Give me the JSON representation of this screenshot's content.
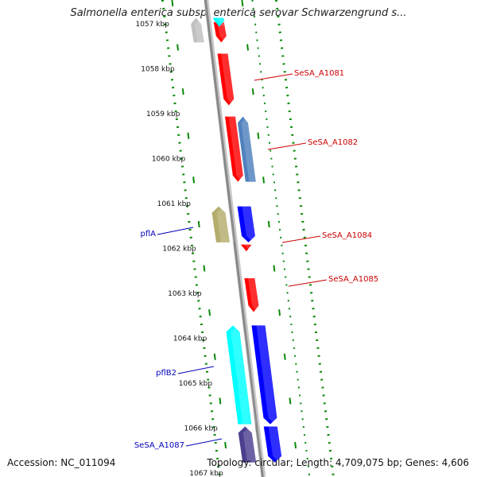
{
  "title": "Salmonella enterica subsp. enterica serovar Schwarzengrund s...",
  "accession": "Accession: NC_011094",
  "topology": "Topology: circular; Length: 4,709,075 bp; Genes: 4,606",
  "ticks": [
    "1057 kbp",
    "1058 kbp",
    "1059 kbp",
    "1060 kbp",
    "1061 kbp",
    "1062 kbp",
    "1063 kbp",
    "1064 kbp",
    "1065 kbp",
    "1066 kbp",
    "1067 kbp"
  ],
  "gene_labels": [
    {
      "text": "SeSA_A1081",
      "color": "#cc0000",
      "side": "right"
    },
    {
      "text": "SeSA_A1082",
      "color": "#cc0000",
      "side": "right"
    },
    {
      "text": "SeSA_A1084",
      "color": "#cc0000",
      "side": "right"
    },
    {
      "text": "SeSA_A1085",
      "color": "#cc0000",
      "side": "right"
    },
    {
      "text": "pflA",
      "color": "#0000bb",
      "side": "left"
    },
    {
      "text": "pflB2",
      "color": "#0000bb",
      "side": "left"
    },
    {
      "text": "SeSA_A1087",
      "color": "#0000bb",
      "side": "left"
    }
  ],
  "features": [
    {
      "color": "#ff0000",
      "strand": "forward",
      "lane": 1,
      "start_kbp": 1057.0,
      "end_kbp": 1057.45
    },
    {
      "color": "#00ffff",
      "strand": "forward",
      "lane": 1,
      "start_kbp": 1056.9,
      "end_kbp": 1057.1
    },
    {
      "color": "#c0c0c0",
      "strand": "reverse",
      "lane": 1,
      "start_kbp": 1056.9,
      "end_kbp": 1057.45
    },
    {
      "color": "#ff0000",
      "strand": "forward",
      "lane": 1,
      "start_kbp": 1057.7,
      "end_kbp": 1058.85
    },
    {
      "color": "#ff0000",
      "strand": "forward",
      "lane": 1,
      "start_kbp": 1059.1,
      "end_kbp": 1060.55
    },
    {
      "color": "#4f81bd",
      "strand": "reverse",
      "lane": 1,
      "start_kbp": 1059.1,
      "end_kbp": 1060.55
    },
    {
      "color": "#b5ad6d",
      "strand": "reverse",
      "lane": 2,
      "start_kbp": 1061.1,
      "end_kbp": 1061.9
    },
    {
      "color": "#0000ff",
      "strand": "forward",
      "lane": 2,
      "start_kbp": 1061.1,
      "end_kbp": 1061.9
    },
    {
      "color": "#ff0000",
      "strand": "forward",
      "lane": 1,
      "start_kbp": 1061.95,
      "end_kbp": 1062.1
    },
    {
      "color": "#ff0000",
      "strand": "forward",
      "lane": 1,
      "start_kbp": 1062.7,
      "end_kbp": 1063.45
    },
    {
      "color": "#00ffff",
      "strand": "reverse",
      "lane": 2,
      "start_kbp": 1063.75,
      "end_kbp": 1065.95
    },
    {
      "color": "#0000ff",
      "strand": "forward",
      "lane": 2,
      "start_kbp": 1063.75,
      "end_kbp": 1065.95
    },
    {
      "color": "#4b3f8f",
      "strand": "reverse",
      "lane": 2,
      "start_kbp": 1066.0,
      "end_kbp": 1066.8
    },
    {
      "color": "#0000ff",
      "strand": "forward",
      "lane": 2,
      "start_kbp": 1066.0,
      "end_kbp": 1066.8
    }
  ],
  "colors": {
    "backbone": "#888888",
    "tick": "#0a8a0a",
    "background": "#ffffff"
  }
}
